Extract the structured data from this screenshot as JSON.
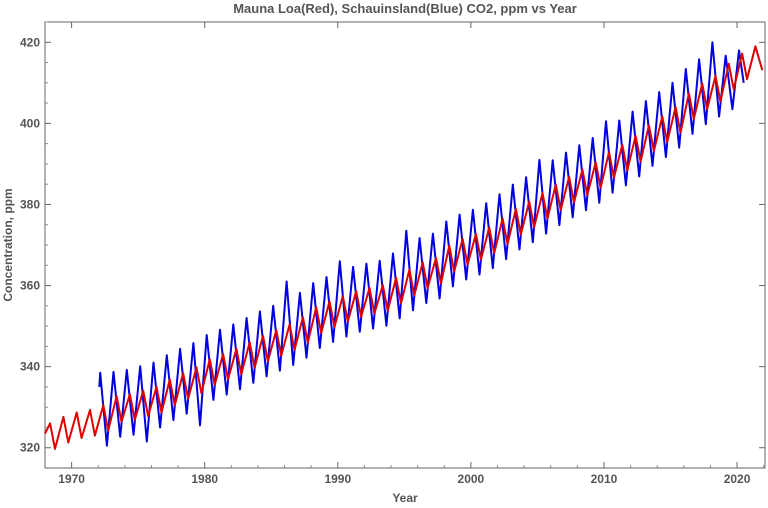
{
  "chart_data": {
    "type": "line",
    "title": "Mauna Loa(Red), Schauinsland(Blue) CO2, ppm vs Year",
    "xlabel": "Year",
    "ylabel": "Concentration, ppm",
    "xlim": [
      1968,
      2022.1
    ],
    "ylim": [
      315,
      425
    ],
    "x_ticks": [
      "1970",
      "1980",
      "1990",
      "2000",
      "2010",
      "2020"
    ],
    "y_ticks": [
      "320",
      "340",
      "360",
      "380",
      "400",
      "420"
    ],
    "grid": false,
    "legend": "none",
    "series": [
      {
        "color": "#e00000",
        "points": [
          [
            1968.0,
            323.5
          ],
          [
            1968.38,
            326.0
          ],
          [
            1968.75,
            319.7
          ],
          [
            1969.38,
            327.6
          ],
          [
            1969.75,
            321.3
          ],
          [
            1970.38,
            328.7
          ],
          [
            1970.75,
            322.4
          ],
          [
            1971.38,
            329.3
          ],
          [
            1971.75,
            323.0
          ],
          [
            1972.38,
            330.5
          ],
          [
            1972.75,
            324.2
          ],
          [
            1973.38,
            332.7
          ],
          [
            1973.75,
            326.4
          ],
          [
            1974.38,
            333.2
          ],
          [
            1974.75,
            326.9
          ],
          [
            1975.38,
            334.1
          ],
          [
            1975.75,
            327.8
          ],
          [
            1976.38,
            335.0
          ],
          [
            1976.75,
            328.7
          ],
          [
            1977.38,
            336.8
          ],
          [
            1977.75,
            330.5
          ],
          [
            1978.38,
            338.4
          ],
          [
            1978.75,
            332.1
          ],
          [
            1979.38,
            339.8
          ],
          [
            1979.75,
            333.5
          ],
          [
            1980.38,
            341.8
          ],
          [
            1980.75,
            335.5
          ],
          [
            1981.38,
            343.1
          ],
          [
            1981.75,
            336.8
          ],
          [
            1982.38,
            344.4
          ],
          [
            1982.75,
            338.1
          ],
          [
            1983.38,
            346.0
          ],
          [
            1983.75,
            339.7
          ],
          [
            1984.38,
            347.6
          ],
          [
            1984.75,
            341.3
          ],
          [
            1985.38,
            349.0
          ],
          [
            1985.75,
            342.7
          ],
          [
            1986.38,
            350.4
          ],
          [
            1986.75,
            344.1
          ],
          [
            1987.38,
            352.2
          ],
          [
            1987.75,
            345.9
          ],
          [
            1988.38,
            354.6
          ],
          [
            1988.75,
            348.3
          ],
          [
            1989.38,
            356.1
          ],
          [
            1989.75,
            349.8
          ],
          [
            1990.38,
            357.4
          ],
          [
            1990.75,
            351.1
          ],
          [
            1991.38,
            358.6
          ],
          [
            1991.75,
            352.3
          ],
          [
            1992.38,
            359.4
          ],
          [
            1992.75,
            353.1
          ],
          [
            1993.38,
            360.1
          ],
          [
            1993.75,
            353.8
          ],
          [
            1994.38,
            361.9
          ],
          [
            1994.75,
            355.6
          ],
          [
            1995.38,
            363.9
          ],
          [
            1995.75,
            357.6
          ],
          [
            1996.38,
            365.7
          ],
          [
            1996.75,
            359.4
          ],
          [
            1997.38,
            366.8
          ],
          [
            1997.75,
            360.5
          ],
          [
            1998.38,
            369.8
          ],
          [
            1998.75,
            363.5
          ],
          [
            1999.38,
            371.5
          ],
          [
            1999.75,
            365.2
          ],
          [
            2000.38,
            372.7
          ],
          [
            2000.75,
            366.4
          ],
          [
            2001.38,
            374.3
          ],
          [
            2001.75,
            368.0
          ],
          [
            2002.38,
            376.5
          ],
          [
            2002.75,
            370.2
          ],
          [
            2003.38,
            378.9
          ],
          [
            2003.75,
            372.6
          ],
          [
            2004.38,
            380.7
          ],
          [
            2004.75,
            374.4
          ],
          [
            2005.38,
            382.8
          ],
          [
            2005.75,
            376.5
          ],
          [
            2006.38,
            384.9
          ],
          [
            2006.75,
            378.6
          ],
          [
            2007.38,
            386.8
          ],
          [
            2007.75,
            380.5
          ],
          [
            2008.38,
            388.6
          ],
          [
            2008.75,
            382.3
          ],
          [
            2009.38,
            390.4
          ],
          [
            2009.75,
            384.1
          ],
          [
            2010.38,
            392.9
          ],
          [
            2010.75,
            386.6
          ],
          [
            2011.38,
            394.7
          ],
          [
            2011.75,
            388.4
          ],
          [
            2012.38,
            396.9
          ],
          [
            2012.75,
            390.6
          ],
          [
            2013.38,
            399.5
          ],
          [
            2013.75,
            393.2
          ],
          [
            2014.38,
            401.7
          ],
          [
            2014.75,
            395.4
          ],
          [
            2015.38,
            404.0
          ],
          [
            2015.75,
            397.7
          ],
          [
            2016.38,
            407.4
          ],
          [
            2016.75,
            401.1
          ],
          [
            2017.38,
            409.8
          ],
          [
            2017.75,
            403.5
          ],
          [
            2018.38,
            411.7
          ],
          [
            2018.75,
            405.4
          ],
          [
            2019.38,
            414.7
          ],
          [
            2019.75,
            408.4
          ],
          [
            2020.38,
            417.2
          ],
          [
            2020.75,
            410.9
          ],
          [
            2021.38,
            419.0
          ],
          [
            2021.9,
            413.1
          ]
        ]
      },
      {
        "color": "#0000e0",
        "points": [
          [
            1972.08,
            335.0
          ],
          [
            1972.15,
            338.5
          ],
          [
            1972.65,
            320.5
          ],
          [
            1973.15,
            338.7
          ],
          [
            1973.65,
            322.7
          ],
          [
            1974.15,
            339.2
          ],
          [
            1974.65,
            323.2
          ],
          [
            1975.15,
            340.1
          ],
          [
            1975.65,
            321.5
          ],
          [
            1976.15,
            341.0
          ],
          [
            1976.65,
            325.0
          ],
          [
            1977.15,
            342.8
          ],
          [
            1977.65,
            326.8
          ],
          [
            1978.15,
            344.4
          ],
          [
            1978.65,
            328.4
          ],
          [
            1979.15,
            345.8
          ],
          [
            1979.65,
            325.5
          ],
          [
            1980.15,
            347.8
          ],
          [
            1980.65,
            331.8
          ],
          [
            1981.15,
            349.1
          ],
          [
            1981.65,
            333.1
          ],
          [
            1982.15,
            350.4
          ],
          [
            1982.65,
            334.4
          ],
          [
            1983.15,
            352.0
          ],
          [
            1983.65,
            336.0
          ],
          [
            1984.15,
            353.6
          ],
          [
            1984.65,
            337.6
          ],
          [
            1985.15,
            355.0
          ],
          [
            1985.65,
            339.0
          ],
          [
            1986.15,
            361.0
          ],
          [
            1986.65,
            340.4
          ],
          [
            1987.15,
            358.2
          ],
          [
            1987.65,
            342.2
          ],
          [
            1988.15,
            360.6
          ],
          [
            1988.65,
            344.6
          ],
          [
            1989.15,
            362.1
          ],
          [
            1989.65,
            346.1
          ],
          [
            1990.15,
            366.0
          ],
          [
            1990.65,
            347.4
          ],
          [
            1991.15,
            364.6
          ],
          [
            1991.65,
            348.6
          ],
          [
            1992.15,
            365.4
          ],
          [
            1992.65,
            349.4
          ],
          [
            1993.15,
            366.1
          ],
          [
            1993.65,
            350.1
          ],
          [
            1994.15,
            367.9
          ],
          [
            1994.65,
            351.9
          ],
          [
            1995.15,
            373.5
          ],
          [
            1995.65,
            353.9
          ],
          [
            1996.15,
            371.7
          ],
          [
            1996.65,
            355.7
          ],
          [
            1997.15,
            372.8
          ],
          [
            1997.65,
            356.8
          ],
          [
            1998.15,
            375.8
          ],
          [
            1998.65,
            359.8
          ],
          [
            1999.15,
            377.5
          ],
          [
            1999.65,
            361.5
          ],
          [
            2000.15,
            378.7
          ],
          [
            2000.65,
            362.7
          ],
          [
            2001.15,
            380.3
          ],
          [
            2001.65,
            364.3
          ],
          [
            2002.15,
            382.5
          ],
          [
            2002.65,
            366.5
          ],
          [
            2003.15,
            384.9
          ],
          [
            2003.65,
            368.9
          ],
          [
            2004.15,
            386.7
          ],
          [
            2004.65,
            370.7
          ],
          [
            2005.15,
            391.0
          ],
          [
            2005.65,
            372.8
          ],
          [
            2006.15,
            390.9
          ],
          [
            2006.65,
            374.9
          ],
          [
            2007.15,
            392.8
          ],
          [
            2007.65,
            376.8
          ],
          [
            2008.15,
            394.6
          ],
          [
            2008.65,
            378.6
          ],
          [
            2009.15,
            396.4
          ],
          [
            2009.65,
            380.4
          ],
          [
            2010.15,
            400.5
          ],
          [
            2010.65,
            382.9
          ],
          [
            2011.15,
            400.7
          ],
          [
            2011.65,
            384.7
          ],
          [
            2012.15,
            402.9
          ],
          [
            2012.65,
            386.9
          ],
          [
            2013.15,
            405.5
          ],
          [
            2013.65,
            389.5
          ],
          [
            2014.15,
            407.7
          ],
          [
            2014.65,
            391.7
          ],
          [
            2015.15,
            410.0
          ],
          [
            2015.65,
            394.0
          ],
          [
            2016.15,
            413.4
          ],
          [
            2016.65,
            397.4
          ],
          [
            2017.15,
            415.8
          ],
          [
            2017.65,
            399.8
          ],
          [
            2018.15,
            420.0
          ],
          [
            2018.65,
            401.7
          ],
          [
            2019.15,
            416.7
          ],
          [
            2019.65,
            403.5
          ],
          [
            2020.15,
            418.0
          ],
          [
            2020.5,
            410.0
          ]
        ]
      }
    ]
  }
}
